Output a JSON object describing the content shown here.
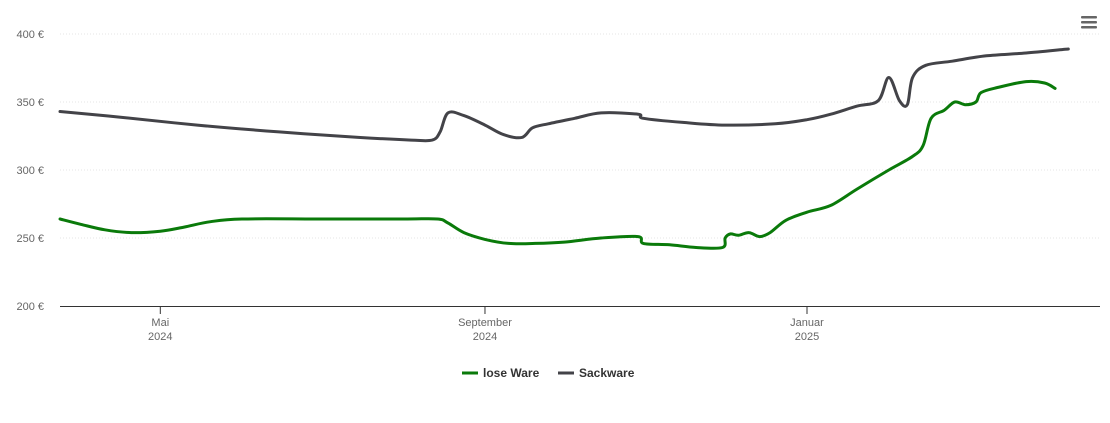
{
  "chart_data": {
    "type": "line",
    "title": "",
    "xlabel": "",
    "ylabel": "",
    "ylim": [
      200,
      400
    ],
    "y_ticks": [
      "200 €",
      "250 €",
      "300 €",
      "350 €",
      "400 €"
    ],
    "y_tick_values": [
      200,
      250,
      300,
      350,
      400
    ],
    "x_ticks": [
      {
        "date": "2024-05-01",
        "label1": "Mai",
        "label2": "2024"
      },
      {
        "date": "2024-09-01",
        "label1": "September",
        "label2": "2024"
      },
      {
        "date": "2025-01-01",
        "label1": "Januar",
        "label2": "2025"
      }
    ],
    "xlim": [
      "2024-03-24",
      "2025-04-22"
    ],
    "grid": "horizontal",
    "legend_position": "bottom-center",
    "series": [
      {
        "name": "lose Ware",
        "color": "#0a7a0a",
        "points": [
          [
            "2024-03-24",
            264
          ],
          [
            "2024-04-01",
            260
          ],
          [
            "2024-04-10",
            256
          ],
          [
            "2024-04-20",
            254
          ],
          [
            "2024-05-01",
            255
          ],
          [
            "2024-05-10",
            258
          ],
          [
            "2024-05-20",
            262
          ],
          [
            "2024-06-01",
            264
          ],
          [
            "2024-07-01",
            264
          ],
          [
            "2024-08-01",
            264
          ],
          [
            "2024-08-14",
            264
          ],
          [
            "2024-08-18",
            261
          ],
          [
            "2024-08-24",
            254
          ],
          [
            "2024-09-01",
            249
          ],
          [
            "2024-09-10",
            246
          ],
          [
            "2024-09-20",
            246
          ],
          [
            "2024-10-01",
            247
          ],
          [
            "2024-10-15",
            250
          ],
          [
            "2024-10-29",
            251
          ],
          [
            "2024-10-31",
            246
          ],
          [
            "2024-11-10",
            245
          ],
          [
            "2024-11-20",
            243
          ],
          [
            "2024-11-30",
            243
          ],
          [
            "2024-12-01",
            250
          ],
          [
            "2024-12-03",
            253
          ],
          [
            "2024-12-06",
            252
          ],
          [
            "2024-12-10",
            254
          ],
          [
            "2024-12-14",
            251
          ],
          [
            "2024-12-18",
            254
          ],
          [
            "2024-12-24",
            263
          ],
          [
            "2025-01-01",
            269
          ],
          [
            "2025-01-10",
            274
          ],
          [
            "2025-01-20",
            286
          ],
          [
            "2025-02-01",
            300
          ],
          [
            "2025-02-10",
            310
          ],
          [
            "2025-02-14",
            318
          ],
          [
            "2025-02-17",
            338
          ],
          [
            "2025-02-22",
            344
          ],
          [
            "2025-02-26",
            350
          ],
          [
            "2025-03-02",
            348
          ],
          [
            "2025-03-06",
            350
          ],
          [
            "2025-03-08",
            357
          ],
          [
            "2025-03-15",
            361
          ],
          [
            "2025-03-25",
            365
          ],
          [
            "2025-04-01",
            364
          ],
          [
            "2025-04-05",
            360
          ]
        ]
      },
      {
        "name": "Sackware",
        "color": "#434348",
        "points": [
          [
            "2024-03-24",
            343
          ],
          [
            "2024-04-15",
            339
          ],
          [
            "2024-05-15",
            333
          ],
          [
            "2024-06-15",
            328
          ],
          [
            "2024-07-15",
            324
          ],
          [
            "2024-08-04",
            322
          ],
          [
            "2024-08-12",
            322
          ],
          [
            "2024-08-15",
            328
          ],
          [
            "2024-08-18",
            342
          ],
          [
            "2024-08-24",
            340
          ],
          [
            "2024-09-01",
            333
          ],
          [
            "2024-09-08",
            326
          ],
          [
            "2024-09-15",
            324
          ],
          [
            "2024-09-19",
            331
          ],
          [
            "2024-09-25",
            334
          ],
          [
            "2024-10-05",
            338
          ],
          [
            "2024-10-15",
            342
          ],
          [
            "2024-10-29",
            341
          ],
          [
            "2024-10-31",
            338
          ],
          [
            "2024-11-15",
            335
          ],
          [
            "2024-12-01",
            333
          ],
          [
            "2024-12-20",
            334
          ],
          [
            "2025-01-01",
            337
          ],
          [
            "2025-01-10",
            341
          ],
          [
            "2025-01-20",
            347
          ],
          [
            "2025-01-28",
            351
          ],
          [
            "2025-02-01",
            368
          ],
          [
            "2025-02-05",
            351
          ],
          [
            "2025-02-08",
            348
          ],
          [
            "2025-02-10",
            368
          ],
          [
            "2025-02-15",
            377
          ],
          [
            "2025-02-25",
            380
          ],
          [
            "2025-03-10",
            384
          ],
          [
            "2025-03-25",
            386
          ],
          [
            "2025-04-10",
            389
          ]
        ]
      }
    ]
  },
  "menu": {
    "icon": "hamburger-menu-icon"
  }
}
